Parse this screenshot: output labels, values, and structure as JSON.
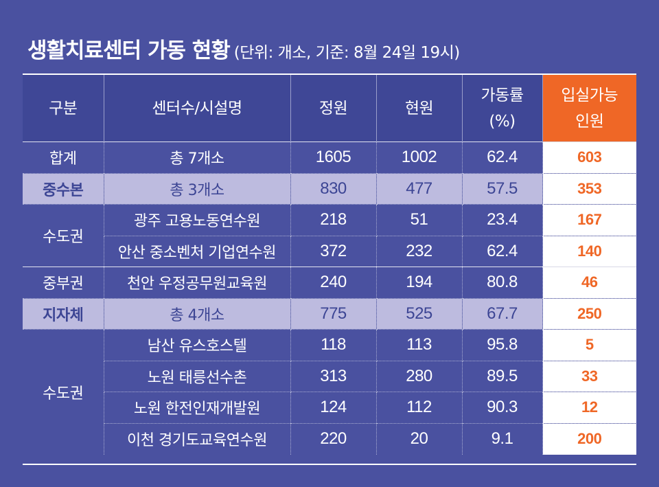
{
  "title": {
    "main": "생활치료센터 가동 현황",
    "sub": "(단위: 개소, 기준: 8월 24일 19시)"
  },
  "header": {
    "category": "구분",
    "center": "센터수/시설명",
    "capacity": "정원",
    "current": "현원",
    "rate_line1": "가동률",
    "rate_line2": "(%)",
    "available_line1": "입실가능",
    "available_line2": "인원"
  },
  "rows": {
    "total": {
      "category": "합계",
      "center": "총 7개소",
      "capacity": "1605",
      "current": "1002",
      "rate": "62.4",
      "available": "603"
    },
    "central": {
      "category": "중수본",
      "center": "총 3개소",
      "capacity": "830",
      "current": "477",
      "rate": "57.5",
      "available": "353"
    },
    "central_metro_category": "수도권",
    "gwangju": {
      "center": "광주 고용노동연수원",
      "capacity": "218",
      "current": "51",
      "rate": "23.4",
      "available": "167"
    },
    "ansan": {
      "center": "안산 중소벤처 기업연수원",
      "capacity": "372",
      "current": "232",
      "rate": "62.4",
      "available": "140"
    },
    "cheonan": {
      "category": "중부권",
      "center": "천안 우정공무원교육원",
      "capacity": "240",
      "current": "194",
      "rate": "80.8",
      "available": "46"
    },
    "local": {
      "category": "지자체",
      "center": "총 4개소",
      "capacity": "775",
      "current": "525",
      "rate": "67.7",
      "available": "250"
    },
    "local_metro_category": "수도권",
    "namsan": {
      "center": "남산 유스호스텔",
      "capacity": "118",
      "current": "113",
      "rate": "95.8",
      "available": "5"
    },
    "taereung": {
      "center": "노원 태릉선수촌",
      "capacity": "313",
      "current": "280",
      "rate": "89.5",
      "available": "33"
    },
    "hanjeon": {
      "center": "노원 한전인재개발원",
      "capacity": "124",
      "current": "112",
      "rate": "90.3",
      "available": "12"
    },
    "icheon": {
      "center": "이천 경기도교육연수원",
      "capacity": "220",
      "current": "20",
      "rate": "9.1",
      "available": "200"
    }
  },
  "colors": {
    "background": "#4a51a0",
    "header": "#3f4796",
    "accent": "#ef6726",
    "subtotal_row": "#bdbbdf"
  }
}
